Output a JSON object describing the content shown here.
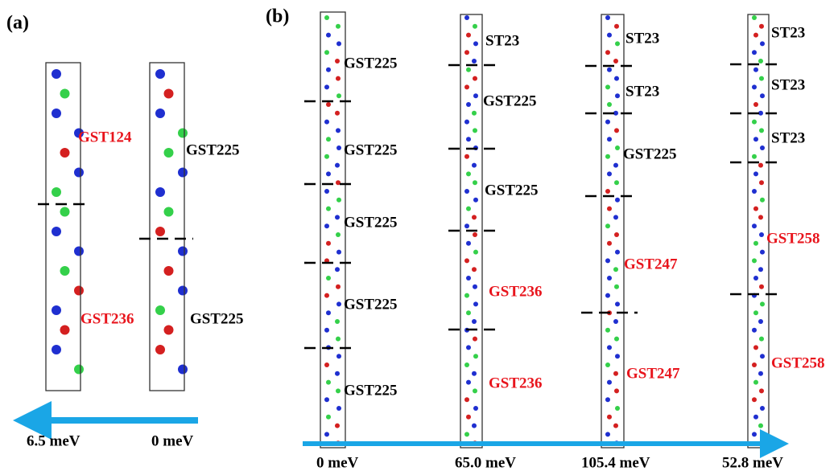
{
  "panels": [
    {
      "label": "(a)",
      "columns": [
        {
          "blocks": [
            "GST124",
            "GST236"
          ],
          "energy": "6.5 meV"
        },
        {
          "blocks": [
            "GST225",
            "GST225"
          ],
          "energy": "0 meV"
        }
      ]
    },
    {
      "label": "(b)",
      "columns": [
        {
          "blocks": [
            "GST225",
            "GST225",
            "GST225",
            "GST225",
            "GST225"
          ],
          "energy": "0 meV"
        },
        {
          "blocks": [
            "ST23",
            "GST225",
            "GST225",
            "GST236",
            "GST236"
          ],
          "energy": "65.0 meV"
        },
        {
          "blocks": [
            "ST23",
            "ST23",
            "GST225",
            "GST247",
            "GST247"
          ],
          "energy": "105.4 meV"
        },
        {
          "blocks": [
            "ST23",
            "ST23",
            "ST23",
            "GST258",
            "GST258"
          ],
          "energy": "52.8 meV"
        }
      ]
    }
  ]
}
